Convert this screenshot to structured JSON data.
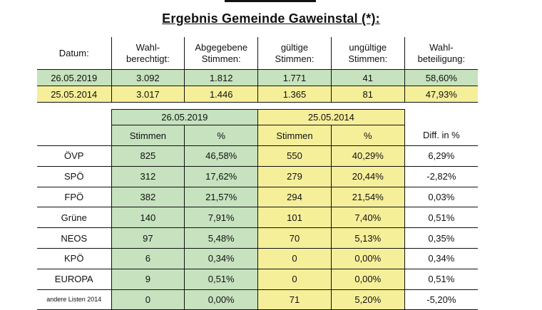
{
  "title": "Ergebnis Gemeinde Gaweinstal (*):",
  "summary": {
    "headers": {
      "datum": "Datum:",
      "wahl_1": "Wahl-",
      "wahl_2": "berechtigt:",
      "abg_1": "Abgegebene",
      "abg_2": "Stimmen:",
      "gue_1": "gültige",
      "gue_2": "Stimmen:",
      "ung_1": "ungültige",
      "ung_2": "Stimmen:",
      "bet_1": "Wahl-",
      "bet_2": "beteiligung:"
    },
    "rows": [
      {
        "datum": "26.05.2019",
        "wahlberechtigt": "3.092",
        "abgegeben": "1.812",
        "gueltig": "1.771",
        "ungueltig": "41",
        "beteiligung": "58,60%"
      },
      {
        "datum": "25.05.2014",
        "wahlberechtigt": "3.017",
        "abgegeben": "1.446",
        "gueltig": "1.365",
        "ungueltig": "81",
        "beteiligung": "47,93%"
      }
    ]
  },
  "detail": {
    "date_2019": "26.05.2019",
    "date_2014": "25.05.2014",
    "col_stimmen": "Stimmen",
    "col_pct": "%",
    "col_diff": "Diff. in %",
    "parties": [
      {
        "name": "ÖVP",
        "s2019": "825",
        "p2019": "46,58%",
        "s2014": "550",
        "p2014": "40,29%",
        "diff": "6,29%"
      },
      {
        "name": "SPÖ",
        "s2019": "312",
        "p2019": "17,62%",
        "s2014": "279",
        "p2014": "20,44%",
        "diff": "-2,82%"
      },
      {
        "name": "FPÖ",
        "s2019": "382",
        "p2019": "21,57%",
        "s2014": "294",
        "p2014": "21,54%",
        "diff": "0,03%"
      },
      {
        "name": "Grüne",
        "s2019": "140",
        "p2019": "7,91%",
        "s2014": "101",
        "p2014": "7,40%",
        "diff": "0,51%"
      },
      {
        "name": "NEOS",
        "s2019": "97",
        "p2019": "5,48%",
        "s2014": "70",
        "p2014": "5,13%",
        "diff": "0,35%"
      },
      {
        "name": "KPÖ",
        "s2019": "6",
        "p2019": "0,34%",
        "s2014": "0",
        "p2014": "0,00%",
        "diff": "0,34%"
      },
      {
        "name": "EUROPA",
        "s2019": "9",
        "p2019": "0,51%",
        "s2014": "0",
        "p2014": "0,00%",
        "diff": "0,51%"
      },
      {
        "name": "andere Listen 2014",
        "s2019": "0",
        "p2019": "0,00%",
        "s2014": "71",
        "p2014": "5,20%",
        "diff": "-5,20%"
      }
    ]
  },
  "colors": {
    "green": "#c6e2be",
    "yellow": "#f6ef9a"
  }
}
